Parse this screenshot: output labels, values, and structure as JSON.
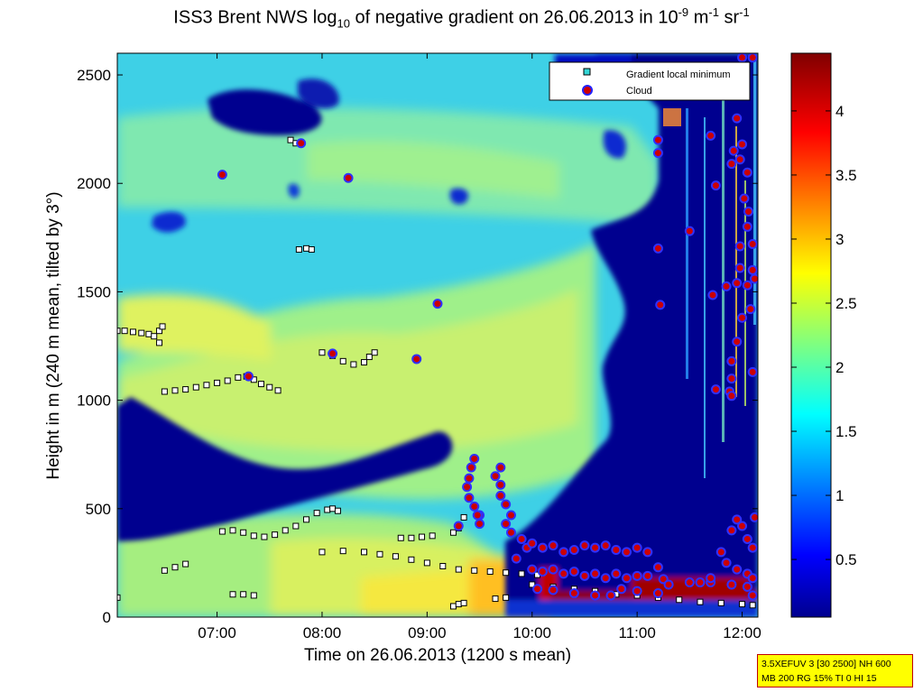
{
  "title": {
    "pre": "ISS3 Brent NWS log",
    "sub": "10",
    "mid": " of negative gradient on 26.06.2013 in 10",
    "sup1": "-9",
    "mid2": " m",
    "sup2": "-1",
    "mid3": " sr",
    "sup3": "-1"
  },
  "info_box": {
    "line1": "3.5XEFUV 3 [30 2500] NH 600",
    "line2": "MB 200 RG 15% TI 0 HI 15"
  },
  "chart_data": {
    "type": "heatmap",
    "xlabel": "Time on 26.06.2013 (1200 s mean)",
    "ylabel": "Height in m (240 m mean, tilted by 3°)",
    "x_range_hours": [
      6.05,
      12.15
    ],
    "ylim": [
      0,
      2600
    ],
    "x_ticks": [
      "07:00",
      "08:00",
      "09:00",
      "10:00",
      "11:00",
      "12:00"
    ],
    "x_tick_hours": [
      7,
      8,
      9,
      10,
      11,
      12
    ],
    "y_ticks": [
      0,
      500,
      1000,
      1500,
      2000,
      2500
    ],
    "colorbar": {
      "range": [
        0.05,
        4.45
      ],
      "ticks": [
        0.5,
        1,
        1.5,
        2,
        2.5,
        3,
        3.5,
        4
      ],
      "colormap": "jet"
    },
    "legend": {
      "placement": "top-right",
      "entries": [
        {
          "label": "Gradient local minimum",
          "marker": "square",
          "color": "#33d6d6"
        },
        {
          "label": "Cloud",
          "marker": "circle",
          "color": "#cc0000",
          "edge": "#2222ff"
        }
      ]
    },
    "series": [
      {
        "name": "Gradient local minimum",
        "points": [
          [
            6.05,
            1320
          ],
          [
            6.12,
            1320
          ],
          [
            6.2,
            1315
          ],
          [
            6.28,
            1310
          ],
          [
            6.35,
            1305
          ],
          [
            6.4,
            1295
          ],
          [
            6.45,
            1320
          ],
          [
            6.45,
            1265
          ],
          [
            6.48,
            1340
          ],
          [
            6.5,
            1040
          ],
          [
            6.6,
            1045
          ],
          [
            6.7,
            1050
          ],
          [
            6.8,
            1060
          ],
          [
            6.9,
            1070
          ],
          [
            7.0,
            1080
          ],
          [
            7.1,
            1090
          ],
          [
            7.2,
            1105
          ],
          [
            7.28,
            1110
          ],
          [
            7.35,
            1095
          ],
          [
            7.42,
            1075
          ],
          [
            7.5,
            1060
          ],
          [
            7.58,
            1045
          ],
          [
            6.5,
            215
          ],
          [
            6.6,
            230
          ],
          [
            6.7,
            245
          ],
          [
            7.05,
            395
          ],
          [
            7.15,
            400
          ],
          [
            7.25,
            390
          ],
          [
            7.35,
            375
          ],
          [
            7.45,
            370
          ],
          [
            7.55,
            380
          ],
          [
            7.65,
            400
          ],
          [
            7.75,
            420
          ],
          [
            7.85,
            450
          ],
          [
            7.95,
            480
          ],
          [
            8.05,
            495
          ],
          [
            8.1,
            500
          ],
          [
            8.15,
            490
          ],
          [
            7.15,
            105
          ],
          [
            7.25,
            105
          ],
          [
            7.35,
            100
          ],
          [
            7.7,
            2200
          ],
          [
            7.75,
            2185
          ],
          [
            7.78,
            1695
          ],
          [
            7.85,
            1700
          ],
          [
            7.9,
            1695
          ],
          [
            8.0,
            300
          ],
          [
            8.2,
            305
          ],
          [
            8.4,
            300
          ],
          [
            8.55,
            290
          ],
          [
            8.7,
            280
          ],
          [
            8.85,
            265
          ],
          [
            9.0,
            250
          ],
          [
            9.15,
            235
          ],
          [
            9.3,
            220
          ],
          [
            9.45,
            215
          ],
          [
            9.6,
            210
          ],
          [
            9.75,
            205
          ],
          [
            9.9,
            200
          ],
          [
            10.05,
            195
          ],
          [
            8.0,
            1220
          ],
          [
            8.1,
            1205
          ],
          [
            8.2,
            1180
          ],
          [
            8.3,
            1165
          ],
          [
            8.4,
            1175
          ],
          [
            8.45,
            1200
          ],
          [
            8.5,
            1220
          ],
          [
            8.75,
            365
          ],
          [
            8.85,
            365
          ],
          [
            8.95,
            370
          ],
          [
            9.05,
            375
          ],
          [
            9.25,
            390
          ],
          [
            9.3,
            410
          ],
          [
            9.35,
            460
          ],
          [
            9.25,
            50
          ],
          [
            9.3,
            60
          ],
          [
            9.35,
            65
          ],
          [
            9.65,
            85
          ],
          [
            9.75,
            90
          ],
          [
            10.0,
            150
          ],
          [
            10.2,
            140
          ],
          [
            10.4,
            130
          ],
          [
            10.6,
            120
          ],
          [
            10.8,
            105
          ],
          [
            11.0,
            100
          ],
          [
            11.2,
            90
          ],
          [
            11.4,
            80
          ],
          [
            11.6,
            70
          ],
          [
            11.8,
            65
          ],
          [
            12.0,
            60
          ],
          [
            12.1,
            55
          ],
          [
            6.05,
            90
          ]
        ]
      },
      {
        "name": "Cloud",
        "points": [
          [
            7.05,
            2040
          ],
          [
            7.8,
            2185
          ],
          [
            8.25,
            2025
          ],
          [
            9.1,
            1445
          ],
          [
            8.9,
            1190
          ],
          [
            7.3,
            1110
          ],
          [
            8.1,
            1215
          ],
          [
            9.3,
            420
          ],
          [
            9.45,
            730
          ],
          [
            9.42,
            690
          ],
          [
            9.4,
            640
          ],
          [
            9.38,
            600
          ],
          [
            9.4,
            550
          ],
          [
            9.45,
            510
          ],
          [
            9.5,
            470
          ],
          [
            9.5,
            430
          ],
          [
            9.48,
            470
          ],
          [
            9.7,
            690
          ],
          [
            9.65,
            650
          ],
          [
            9.7,
            610
          ],
          [
            9.7,
            560
          ],
          [
            9.75,
            520
          ],
          [
            9.8,
            470
          ],
          [
            9.75,
            430
          ],
          [
            9.8,
            390
          ],
          [
            9.9,
            360
          ],
          [
            9.95,
            320
          ],
          [
            9.85,
            270
          ],
          [
            10.0,
            340
          ],
          [
            10.1,
            320
          ],
          [
            10.2,
            330
          ],
          [
            10.3,
            300
          ],
          [
            10.4,
            310
          ],
          [
            10.5,
            330
          ],
          [
            10.6,
            320
          ],
          [
            10.7,
            330
          ],
          [
            10.8,
            310
          ],
          [
            10.9,
            300
          ],
          [
            11.0,
            320
          ],
          [
            11.1,
            300
          ],
          [
            11.2,
            230
          ],
          [
            11.25,
            175
          ],
          [
            10.0,
            220
          ],
          [
            10.1,
            210
          ],
          [
            10.2,
            220
          ],
          [
            10.3,
            200
          ],
          [
            10.4,
            210
          ],
          [
            10.5,
            190
          ],
          [
            10.6,
            200
          ],
          [
            10.7,
            180
          ],
          [
            10.8,
            200
          ],
          [
            10.9,
            180
          ],
          [
            11.0,
            190
          ],
          [
            11.1,
            190
          ],
          [
            10.05,
            130
          ],
          [
            10.2,
            125
          ],
          [
            10.4,
            110
          ],
          [
            10.6,
            100
          ],
          [
            10.75,
            100
          ],
          [
            10.85,
            130
          ],
          [
            11.0,
            120
          ],
          [
            11.2,
            110
          ],
          [
            11.3,
            150
          ],
          [
            11.5,
            160
          ],
          [
            11.7,
            160
          ],
          [
            11.9,
            150
          ],
          [
            12.05,
            140
          ],
          [
            12.1,
            100
          ],
          [
            11.2,
            2200
          ],
          [
            11.2,
            2140
          ],
          [
            11.2,
            1700
          ],
          [
            11.22,
            1440
          ],
          [
            11.5,
            1780
          ],
          [
            11.7,
            2220
          ],
          [
            11.75,
            1990
          ],
          [
            11.72,
            1485
          ],
          [
            11.75,
            1050
          ],
          [
            11.85,
            1525
          ],
          [
            11.88,
            1040
          ],
          [
            11.9,
            1100
          ],
          [
            11.9,
            1180
          ],
          [
            11.98,
            2110
          ],
          [
            12.0,
            2180
          ],
          [
            12.02,
            1930
          ],
          [
            12.05,
            1800
          ],
          [
            12.1,
            1720
          ],
          [
            12.1,
            1600
          ],
          [
            12.05,
            1530
          ],
          [
            12.0,
            1380
          ],
          [
            12.08,
            1420
          ],
          [
            12.1,
            1130
          ],
          [
            12.12,
            1560
          ],
          [
            11.95,
            2300
          ],
          [
            11.92,
            2150
          ],
          [
            11.95,
            1540
          ],
          [
            11.95,
            1270
          ],
          [
            11.9,
            1020
          ],
          [
            11.98,
            1710
          ],
          [
            12.06,
            1870
          ],
          [
            11.98,
            1610
          ],
          [
            12.0,
            2580
          ],
          [
            12.1,
            2580
          ],
          [
            11.9,
            2090
          ],
          [
            12.05,
            2050
          ],
          [
            11.8,
            300
          ],
          [
            11.9,
            400
          ],
          [
            11.95,
            450
          ],
          [
            12.0,
            420
          ],
          [
            12.05,
            360
          ],
          [
            12.1,
            320
          ],
          [
            12.12,
            460
          ],
          [
            11.85,
            250
          ],
          [
            11.95,
            220
          ],
          [
            12.05,
            200
          ],
          [
            12.1,
            180
          ],
          [
            11.7,
            180
          ],
          [
            11.6,
            160
          ]
        ]
      }
    ]
  }
}
